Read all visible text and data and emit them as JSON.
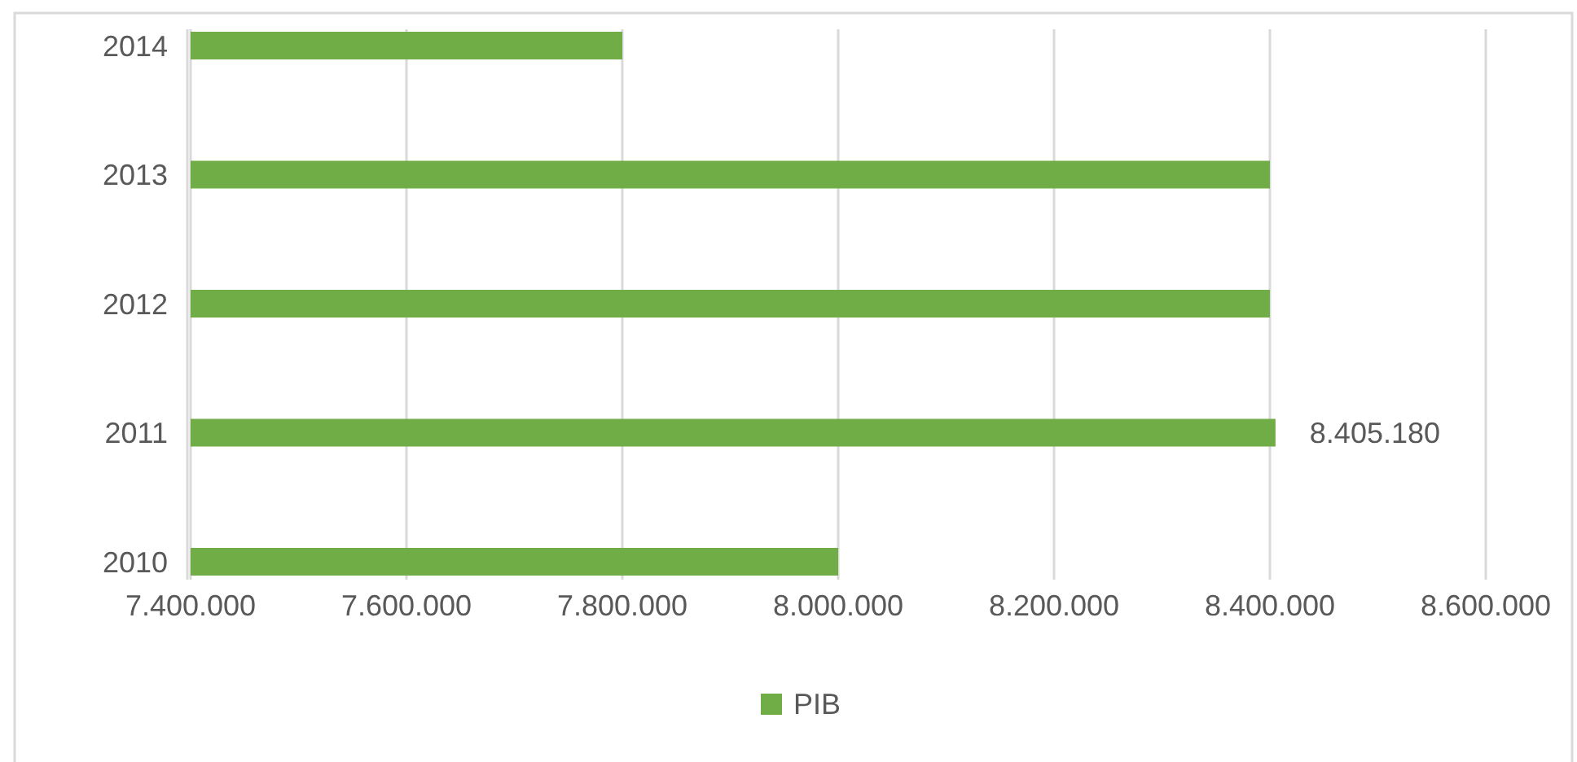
{
  "chart_data": {
    "type": "bar",
    "orientation": "horizontal",
    "categories": [
      "2014",
      "2013",
      "2012",
      "2011",
      "2010"
    ],
    "series": [
      {
        "name": "PIB",
        "color": "#70ad47",
        "values": [
          7800000,
          8400000,
          8400000,
          8405180,
          8000000
        ],
        "value_labels": [
          null,
          null,
          null,
          "8.405.180",
          null
        ]
      }
    ],
    "xlim": [
      7400000,
      8600000
    ],
    "xticks": [
      {
        "value": 7400000,
        "label": "7.400.000"
      },
      {
        "value": 7600000,
        "label": "7.600.000"
      },
      {
        "value": 7800000,
        "label": "7.800.000"
      },
      {
        "value": 8000000,
        "label": "8.000.000"
      },
      {
        "value": 8200000,
        "label": "8.200.000"
      },
      {
        "value": 8400000,
        "label": "8.400.000"
      },
      {
        "value": 8600000,
        "label": "8.600.000"
      }
    ],
    "grid": "x",
    "legend": "bottom"
  }
}
